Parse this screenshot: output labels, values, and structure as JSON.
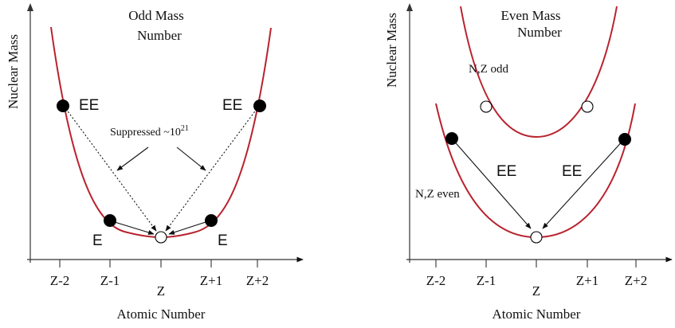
{
  "odd_panel": {
    "title_line1": "Odd Mass",
    "title_line2": "Number",
    "ylabel": "Nuclear Mass",
    "xlabel": "Atomic Number",
    "ticks": [
      "Z-2",
      "Z-1",
      "Z",
      "Z+1",
      "Z+2"
    ],
    "label_ee_left": "EE",
    "label_ee_right": "EE",
    "label_e_left": "E",
    "label_e_right": "E",
    "suppressed_text": "Suppressed ~10",
    "suppressed_exponent": "21"
  },
  "even_panel": {
    "title_line1": "Even Mass",
    "title_line2": "Number",
    "ylabel": "Nuclear Mass",
    "xlabel": "Atomic Number",
    "ticks": [
      "Z-2",
      "Z-1",
      "Z",
      "Z+1",
      "Z+2"
    ],
    "upper_curve_label": "N,Z odd",
    "lower_curve_label": "N,Z even",
    "label_ee_left": "EE",
    "label_ee_right": "EE"
  },
  "colors": {
    "curve": "#b8232e",
    "dots": "#000000",
    "text": "#111111"
  }
}
